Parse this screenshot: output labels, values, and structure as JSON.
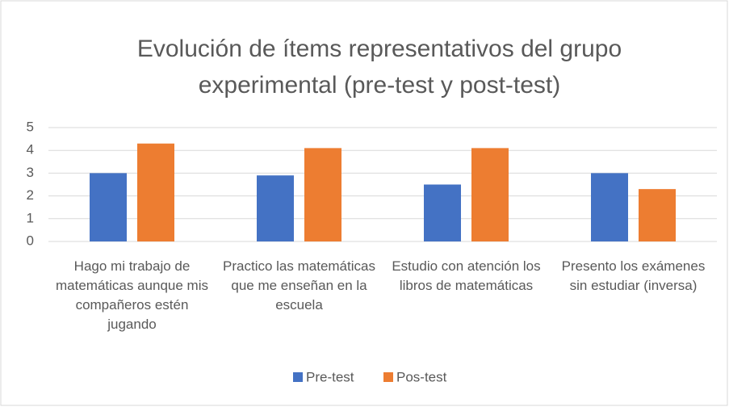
{
  "chart_data": {
    "type": "bar",
    "title": "Evolución de ítems representativos del grupo experimental (pre-test y post-test)",
    "categories": [
      "Hago mi trabajo de matemáticas aunque mis compañeros estén jugando",
      "Practico las matemáticas que me enseñan en la escuela",
      "Estudio con atención los libros de matemáticas",
      "Presento los exámenes sin estudiar (inversa)"
    ],
    "series": [
      {
        "name": "Pre-test",
        "color": "#4472c4",
        "values": [
          3,
          2.9,
          2.5,
          3
        ]
      },
      {
        "name": "Pos-test",
        "color": "#ed7d31",
        "values": [
          4.3,
          4.1,
          4.1,
          2.3
        ]
      }
    ],
    "ylim": [
      0,
      5
    ],
    "yticks": [
      0,
      1,
      2,
      3,
      4,
      5
    ],
    "grid": true,
    "legend": "bottom"
  }
}
